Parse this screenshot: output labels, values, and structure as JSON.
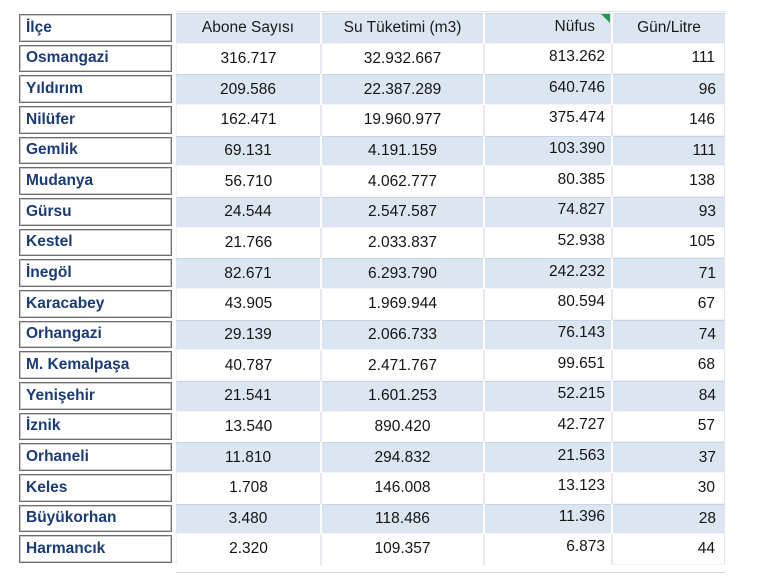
{
  "table": {
    "columns": [
      {
        "key": "ilce",
        "label": "İlçe"
      },
      {
        "key": "abone",
        "label": "Abone Sayısı"
      },
      {
        "key": "su",
        "label": "Su Tüketimi (m3)"
      },
      {
        "key": "nufus",
        "label": "Nüfus"
      },
      {
        "key": "gun",
        "label": "Gün/Litre"
      }
    ],
    "rows": [
      {
        "ilce": "Osmangazi",
        "abone": "316.717",
        "su": "32.932.667",
        "nufus": "813.262",
        "gun": "111"
      },
      {
        "ilce": "Yıldırım",
        "abone": "209.586",
        "su": "22.387.289",
        "nufus": "640.746",
        "gun": "96"
      },
      {
        "ilce": "Nilüfer",
        "abone": "162.471",
        "su": "19.960.977",
        "nufus": "375.474",
        "gun": "146"
      },
      {
        "ilce": "Gemlik",
        "abone": "69.131",
        "su": "4.191.159",
        "nufus": "103.390",
        "gun": "111"
      },
      {
        "ilce": "Mudanya",
        "abone": "56.710",
        "su": "4.062.777",
        "nufus": "80.385",
        "gun": "138"
      },
      {
        "ilce": "Gürsu",
        "abone": "24.544",
        "su": "2.547.587",
        "nufus": "74.827",
        "gun": "93"
      },
      {
        "ilce": "Kestel",
        "abone": "21.766",
        "su": "2.033.837",
        "nufus": "52.938",
        "gun": "105"
      },
      {
        "ilce": "İnegöl",
        "abone": "82.671",
        "su": "6.293.790",
        "nufus": "242.232",
        "gun": "71"
      },
      {
        "ilce": "Karacabey",
        "abone": "43.905",
        "su": "1.969.944",
        "nufus": "80.594",
        "gun": "67"
      },
      {
        "ilce": "Orhangazi",
        "abone": "29.139",
        "su": "2.066.733",
        "nufus": "76.143",
        "gun": "74"
      },
      {
        "ilce": "M. Kemalpaşa",
        "abone": "40.787",
        "su": "2.471.767",
        "nufus": "99.651",
        "gun": "68"
      },
      {
        "ilce": "Yenişehir",
        "abone": "21.541",
        "su": "1.601.253",
        "nufus": "52.215",
        "gun": "84"
      },
      {
        "ilce": "İznik",
        "abone": "13.540",
        "su": "890.420",
        "nufus": "42.727",
        "gun": "57"
      },
      {
        "ilce": "Orhaneli",
        "abone": "11.810",
        "su": "294.832",
        "nufus": "21.563",
        "gun": "37"
      },
      {
        "ilce": "Keles",
        "abone": "1.708",
        "su": "146.008",
        "nufus": "13.123",
        "gun": "30"
      },
      {
        "ilce": "Büyükorhan",
        "abone": "3.480",
        "su": "118.486",
        "nufus": "11.396",
        "gun": "28"
      },
      {
        "ilce": "Harmancık",
        "abone": "2.320",
        "su": "109.357",
        "nufus": "6.873",
        "gun": "44"
      }
    ]
  },
  "icons": {
    "comment_flag": "green-corner-triangle"
  },
  "colors": {
    "row_stripe": "#dce6f1",
    "district_text": "#1b3b76",
    "district_box_border": "#6f6f6f",
    "data_text": "#141414",
    "flag_green": "#1f9b4a",
    "page_background": "#ffffff"
  }
}
